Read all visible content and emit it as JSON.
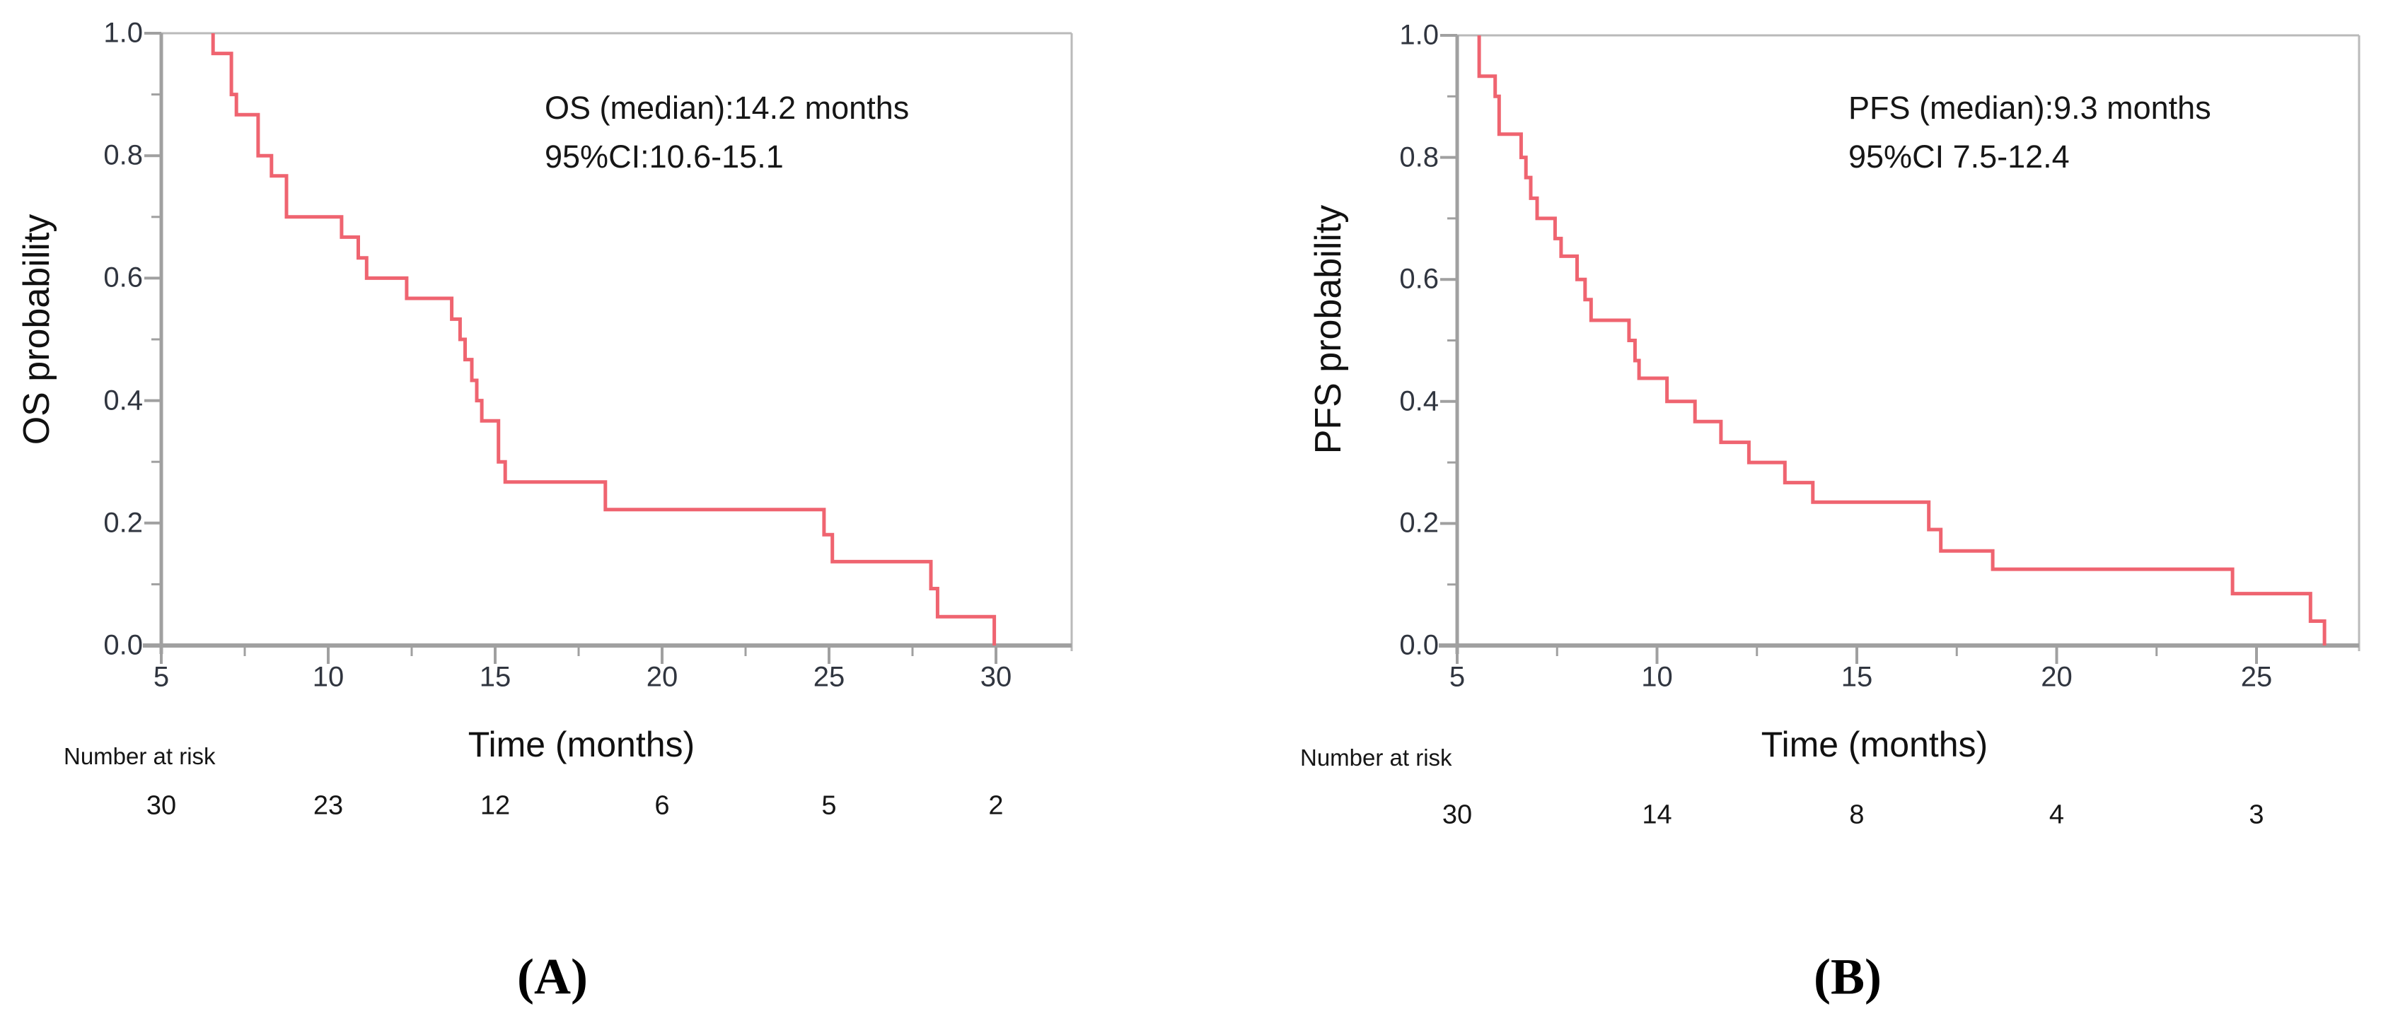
{
  "figure": {
    "background": "#ffffff",
    "colors": {
      "curve": "#ef6470",
      "axis": "#a0a0a0",
      "border": "#bababa",
      "tick_label": "#30353f",
      "text": "#161616"
    }
  },
  "chart_data": [
    {
      "type": "line",
      "subtype": "kaplan-meier-step",
      "panel_label": "(A)",
      "ylabel": "OS probability",
      "xlabel": "Time (months)",
      "annotation_lines": [
        "OS (median):14.2 months",
        "95%CI:10.6-15.1"
      ],
      "xlim": [
        5,
        32.2
      ],
      "ylim": [
        0,
        1
      ],
      "grid": false,
      "xticks": [
        5,
        10,
        15,
        20,
        25,
        30
      ],
      "xticks_minor": [
        7.5,
        12.5,
        17.5,
        22.5,
        27.5
      ],
      "ytick_labels": [
        "1.0",
        "0.8",
        "0.6",
        "0.4",
        "0.2",
        "0.0"
      ],
      "ytick_values": [
        1.0,
        0.8,
        0.6,
        0.4,
        0.2,
        0.0
      ],
      "yticks_minor": [
        0.9,
        0.7,
        0.5,
        0.3,
        0.1
      ],
      "curve_start": [
        6.55,
        1.0
      ],
      "steps": [
        [
          6.55,
          0.967
        ],
        [
          7.1,
          0.9
        ],
        [
          7.25,
          0.867
        ],
        [
          7.9,
          0.8
        ],
        [
          8.3,
          0.767
        ],
        [
          8.75,
          0.7
        ],
        [
          10.4,
          0.667
        ],
        [
          10.9,
          0.633
        ],
        [
          11.15,
          0.6
        ],
        [
          12.35,
          0.567
        ],
        [
          13.7,
          0.533
        ],
        [
          13.95,
          0.5
        ],
        [
          14.1,
          0.467
        ],
        [
          14.3,
          0.433
        ],
        [
          14.45,
          0.4
        ],
        [
          14.6,
          0.367
        ],
        [
          15.1,
          0.3
        ],
        [
          15.3,
          0.267
        ],
        [
          18.3,
          0.222
        ],
        [
          24.85,
          0.181
        ],
        [
          25.1,
          0.137
        ],
        [
          28.05,
          0.093
        ],
        [
          28.25,
          0.047
        ],
        [
          29.95,
          0.0
        ]
      ],
      "number_at_risk": {
        "label": "Number at risk",
        "times": [
          5,
          10,
          15,
          20,
          25,
          30
        ],
        "values": [
          "30",
          "23",
          "12",
          "6",
          "5",
          "2"
        ]
      }
    },
    {
      "type": "line",
      "subtype": "kaplan-meier-step",
      "panel_label": "(B)",
      "ylabel": "PFS probability",
      "xlabel": "Time (months)",
      "annotation_lines": [
        "PFS (median):9.3 months",
        "95%CI 7.5-12.4"
      ],
      "xlim": [
        5,
        27.5
      ],
      "ylim": [
        0,
        1
      ],
      "grid": false,
      "xticks": [
        5,
        10,
        15,
        20,
        25
      ],
      "xticks_minor": [
        7.5,
        12.5,
        17.5,
        22.5
      ],
      "ytick_labels": [
        "1.0",
        "0.8",
        "0.6",
        "0.4",
        "0.2",
        "0.0"
      ],
      "ytick_values": [
        1.0,
        0.8,
        0.6,
        0.4,
        0.2,
        0.0
      ],
      "yticks_minor": [
        0.9,
        0.7,
        0.5,
        0.3,
        0.1
      ],
      "curve_start": [
        5.55,
        1.0
      ],
      "steps": [
        [
          5.55,
          0.933
        ],
        [
          5.95,
          0.9
        ],
        [
          6.05,
          0.838
        ],
        [
          6.6,
          0.8
        ],
        [
          6.72,
          0.767
        ],
        [
          6.84,
          0.733
        ],
        [
          7.0,
          0.7
        ],
        [
          7.45,
          0.667
        ],
        [
          7.6,
          0.638
        ],
        [
          8.0,
          0.6
        ],
        [
          8.2,
          0.567
        ],
        [
          8.35,
          0.533
        ],
        [
          9.3,
          0.5
        ],
        [
          9.45,
          0.467
        ],
        [
          9.55,
          0.438
        ],
        [
          10.25,
          0.4
        ],
        [
          10.95,
          0.367
        ],
        [
          11.6,
          0.333
        ],
        [
          12.3,
          0.3
        ],
        [
          13.2,
          0.267
        ],
        [
          13.9,
          0.235
        ],
        [
          16.8,
          0.19
        ],
        [
          17.1,
          0.155
        ],
        [
          18.4,
          0.125
        ],
        [
          24.4,
          0.085
        ],
        [
          26.35,
          0.04
        ],
        [
          26.7,
          0.0
        ]
      ],
      "number_at_risk": {
        "label": "Number at risk",
        "times": [
          5,
          10,
          15,
          20,
          25
        ],
        "values": [
          "30",
          "14",
          "8",
          "4",
          "3"
        ]
      }
    }
  ]
}
